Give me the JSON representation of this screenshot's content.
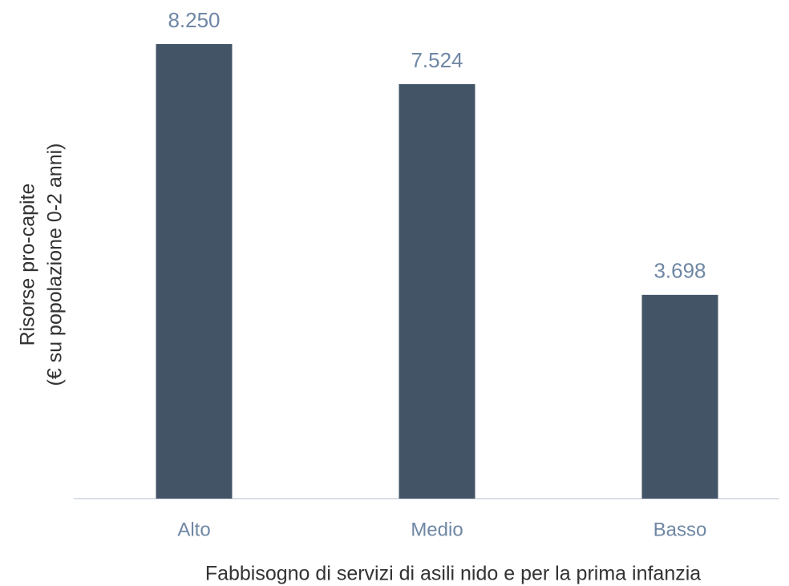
{
  "chart_data": {
    "type": "bar",
    "x_label": "Fabbisogno di servizi di asili nido e per la prima infanzia",
    "y_label": [
      "Risorse pro-capite",
      "(€ su popolazione 0-2 anni)"
    ],
    "categories": [
      "Alto",
      "Medio",
      "Basso"
    ],
    "values": [
      8250,
      7524,
      3698
    ],
    "value_labels": [
      "8.250",
      "7.524",
      "3.698"
    ],
    "color": "#425466"
  }
}
